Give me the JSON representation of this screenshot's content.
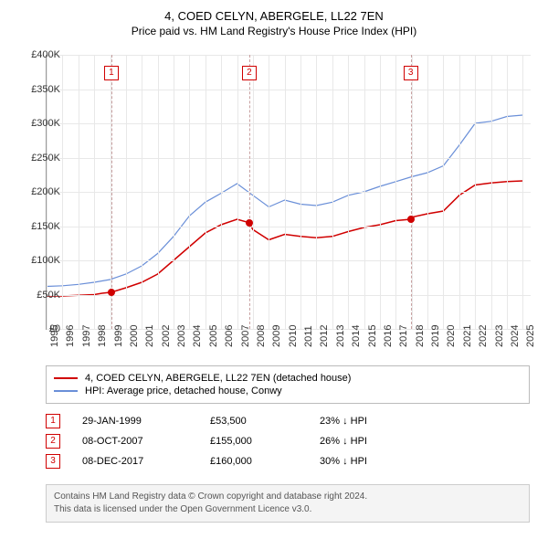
{
  "title": "4, COED CELYN, ABERGELE, LL22 7EN",
  "subtitle": "Price paid vs. HM Land Registry's House Price Index (HPI)",
  "chart": {
    "type": "line",
    "xlim": [
      1995,
      2025.5
    ],
    "ylim": [
      0,
      400000
    ],
    "ytick_step": 50000,
    "ytick_labels": [
      "£0",
      "£50K",
      "£100K",
      "£150K",
      "£200K",
      "£250K",
      "£300K",
      "£350K",
      "£400K"
    ],
    "xticks": [
      1995,
      1996,
      1997,
      1998,
      1999,
      2000,
      2001,
      2002,
      2003,
      2004,
      2005,
      2006,
      2007,
      2008,
      2009,
      2010,
      2011,
      2012,
      2013,
      2014,
      2015,
      2016,
      2017,
      2018,
      2019,
      2020,
      2021,
      2022,
      2023,
      2024,
      2025
    ],
    "background_color": "#ffffff",
    "grid_color": "#e8e8e8",
    "axis_color": "#999999",
    "label_fontsize": 11,
    "series": [
      {
        "name": "price_paid",
        "color": "#d00000",
        "width": 1.5,
        "points": [
          [
            1995,
            48000
          ],
          [
            1996,
            48000
          ],
          [
            1997,
            49000
          ],
          [
            1998,
            50000
          ],
          [
            1998.5,
            52000
          ],
          [
            1999.08,
            53500
          ],
          [
            2000,
            60000
          ],
          [
            2001,
            68000
          ],
          [
            2002,
            80000
          ],
          [
            2003,
            100000
          ],
          [
            2004,
            120000
          ],
          [
            2005,
            140000
          ],
          [
            2006,
            152000
          ],
          [
            2007,
            160000
          ],
          [
            2007.77,
            155000
          ],
          [
            2008,
            145000
          ],
          [
            2009,
            130000
          ],
          [
            2010,
            138000
          ],
          [
            2011,
            135000
          ],
          [
            2012,
            133000
          ],
          [
            2013,
            135000
          ],
          [
            2014,
            142000
          ],
          [
            2015,
            148000
          ],
          [
            2016,
            152000
          ],
          [
            2017,
            158000
          ],
          [
            2017.94,
            160000
          ],
          [
            2018,
            163000
          ],
          [
            2019,
            168000
          ],
          [
            2020,
            172000
          ],
          [
            2021,
            195000
          ],
          [
            2022,
            210000
          ],
          [
            2023,
            213000
          ],
          [
            2024,
            215000
          ],
          [
            2025,
            216000
          ]
        ]
      },
      {
        "name": "hpi",
        "color": "#6a8fd8",
        "width": 1.2,
        "points": [
          [
            1995,
            62000
          ],
          [
            1996,
            63000
          ],
          [
            1997,
            65000
          ],
          [
            1998,
            68000
          ],
          [
            1999,
            72000
          ],
          [
            2000,
            80000
          ],
          [
            2001,
            92000
          ],
          [
            2002,
            110000
          ],
          [
            2003,
            135000
          ],
          [
            2004,
            165000
          ],
          [
            2005,
            185000
          ],
          [
            2006,
            198000
          ],
          [
            2007,
            212000
          ],
          [
            2008,
            195000
          ],
          [
            2009,
            178000
          ],
          [
            2010,
            188000
          ],
          [
            2011,
            182000
          ],
          [
            2012,
            180000
          ],
          [
            2013,
            185000
          ],
          [
            2014,
            195000
          ],
          [
            2015,
            200000
          ],
          [
            2016,
            208000
          ],
          [
            2017,
            215000
          ],
          [
            2018,
            222000
          ],
          [
            2019,
            228000
          ],
          [
            2020,
            238000
          ],
          [
            2021,
            268000
          ],
          [
            2022,
            300000
          ],
          [
            2023,
            303000
          ],
          [
            2024,
            310000
          ],
          [
            2025,
            312000
          ]
        ]
      }
    ],
    "markers": [
      {
        "n": "1",
        "x": 1999.08,
        "y": 53500
      },
      {
        "n": "2",
        "x": 2007.77,
        "y": 155000
      },
      {
        "n": "3",
        "x": 2017.94,
        "y": 160000
      }
    ]
  },
  "legend": {
    "items": [
      {
        "color": "#d00000",
        "label": "4, COED CELYN, ABERGELE, LL22 7EN (detached house)"
      },
      {
        "color": "#6a8fd8",
        "label": "HPI: Average price, detached house, Conwy"
      }
    ]
  },
  "transactions": [
    {
      "n": "1",
      "date": "29-JAN-1999",
      "price": "£53,500",
      "delta": "23% ↓ HPI"
    },
    {
      "n": "2",
      "date": "08-OCT-2007",
      "price": "£155,000",
      "delta": "26% ↓ HPI"
    },
    {
      "n": "3",
      "date": "08-DEC-2017",
      "price": "£160,000",
      "delta": "30% ↓ HPI"
    }
  ],
  "footer": {
    "line1": "Contains HM Land Registry data © Crown copyright and database right 2024.",
    "line2": "This data is licensed under the Open Government Licence v3.0."
  }
}
